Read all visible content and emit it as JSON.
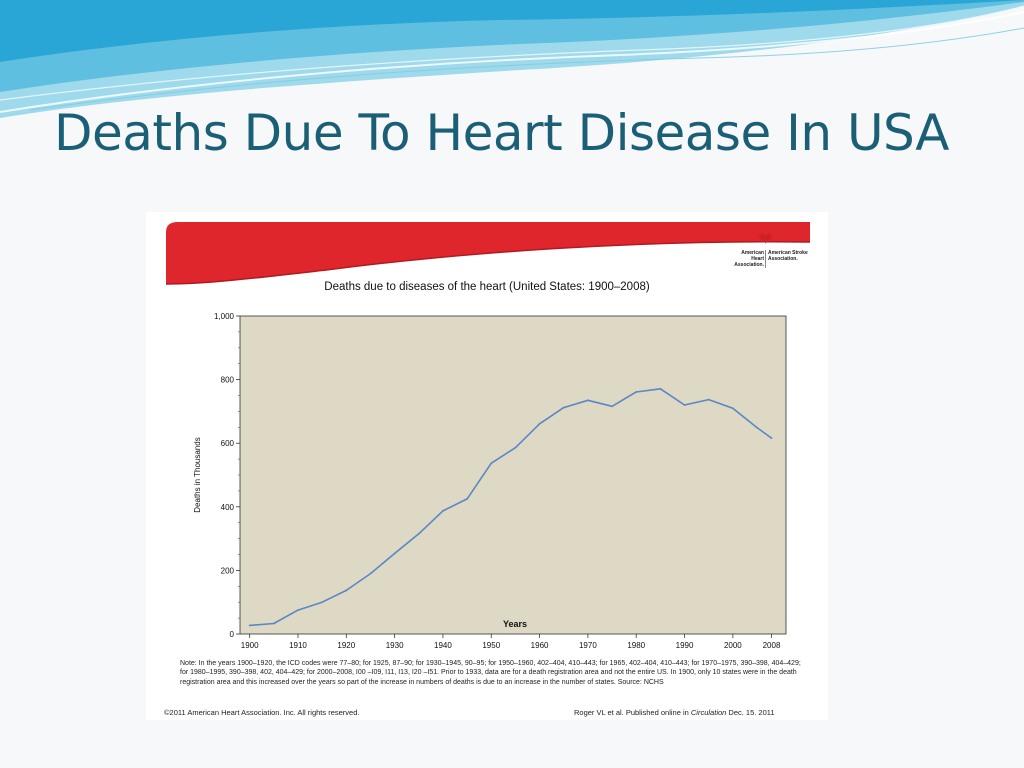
{
  "slide": {
    "title": "Deaths Due To Heart Disease In USA"
  },
  "logo": {
    "left_text": "American Heart Association.",
    "right_text": "American Stroke Association."
  },
  "chart_data": {
    "type": "line",
    "title": "Deaths due to diseases of the heart (United States: 1900–2008)",
    "xlabel": "Years",
    "ylabel": "Deaths in Thousands",
    "x_ticks": [
      "1900",
      "1910",
      "1920",
      "1930",
      "1940",
      "1950",
      "1960",
      "1970",
      "1980",
      "1990",
      "2000",
      "2008"
    ],
    "y_ticks": [
      "0",
      "200",
      "400",
      "600",
      "800",
      "1,000"
    ],
    "xlim": [
      1898,
      2011
    ],
    "ylim": [
      0,
      1000
    ],
    "grid": false,
    "colors": {
      "plot_bg": "#ddd9c5",
      "line": "#5b87c4"
    },
    "series": [
      {
        "x": [
          1900,
          1905,
          1910,
          1915,
          1920,
          1925,
          1930,
          1935,
          1940,
          1945,
          1950,
          1955,
          1960,
          1965,
          1970,
          1975,
          1980,
          1985,
          1990,
          1995,
          2000,
          2005,
          2008
        ],
        "values": [
          27,
          33,
          75,
          100,
          137,
          190,
          253,
          315,
          387,
          425,
          537,
          586,
          661,
          712,
          735,
          716,
          761,
          771,
          720,
          737,
          710,
          649,
          616
        ]
      }
    ]
  },
  "note": "Note: In the years 1900–1920, the ICD codes were 77–80; for 1925, 87–90; for 1930–1945, 90–95; for 1950–1960, 402–404, 410–443; for 1965, 402–404, 410–443; for 1970–1975, 390–398, 404–429; for 1980–1995, 390–398, 402, 404–429; for 2000–2008, I00 –I09, I11, I13, I20 –I51. Prior to 1933, data are for a death registration area and not the entire US. In 1900, only 10 states were in the death registration area and this increased over the years so part of the increase in numbers of deaths is due to an increase in the number of states. Source: NCHS",
  "copyright": "©2011 American Heart Association. Inc. All rights reserved.",
  "citation": {
    "prefix": "Roger VL et al. Published online in ",
    "journal": "Circulation",
    "suffix": " Dec. 15. 2011"
  }
}
